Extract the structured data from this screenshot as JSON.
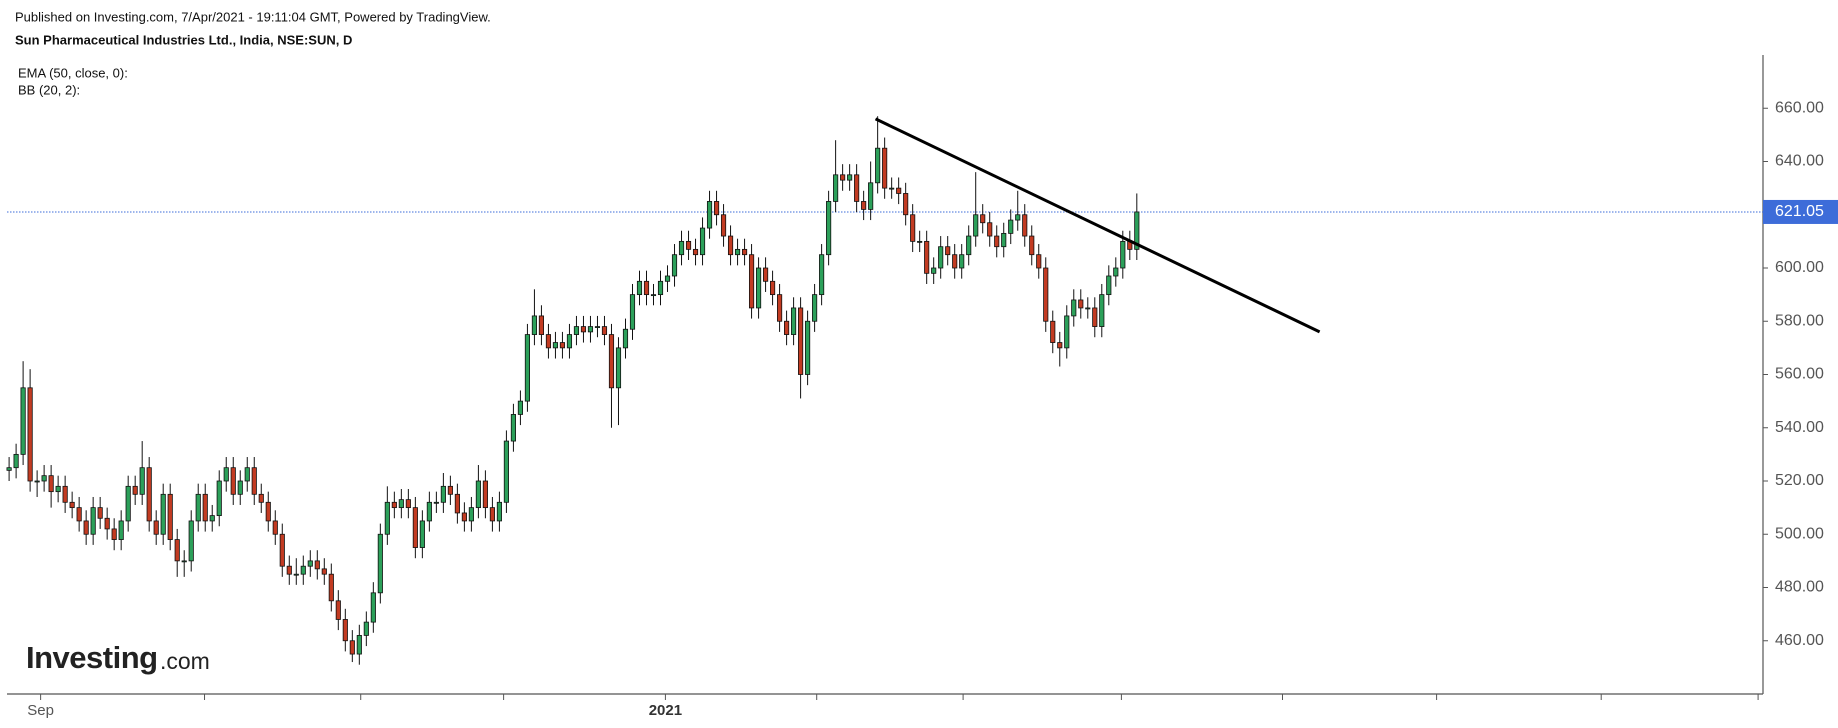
{
  "header": {
    "published": "Published on Investing.com, 7/Apr/2021 - 19:11:04 GMT, Powered by TradingView.",
    "symbol": "Sun Pharmaceutical Industries Ltd., India, NSE:SUN, D"
  },
  "indicators": [
    "EMA (50, close, 0):",
    "BB (20, 2):"
  ],
  "logo": {
    "name": "Investing",
    "suffix": ".com"
  },
  "chart_data": {
    "type": "candlestick",
    "up_color": "#2ca05a",
    "down_color": "#c23b22",
    "open": [
      524,
      525,
      530,
      555,
      520,
      520,
      522,
      516,
      518,
      512,
      510,
      505,
      500,
      510,
      506,
      502,
      498,
      505,
      518,
      515,
      525,
      505,
      500,
      515,
      498,
      490,
      490,
      505,
      515,
      505,
      507,
      520,
      525,
      515,
      520,
      525,
      515,
      512,
      505,
      500,
      488,
      485,
      485,
      488,
      490,
      487,
      485,
      475,
      468,
      460,
      455,
      462,
      467,
      478,
      500,
      512,
      510,
      513,
      510,
      495,
      505,
      512,
      512,
      518,
      515,
      508,
      505,
      510,
      520,
      510,
      505,
      512,
      535,
      545,
      550,
      575,
      582,
      575,
      570,
      572,
      570,
      575,
      578,
      576,
      578,
      578,
      575,
      555,
      570,
      577,
      590,
      595,
      590,
      590,
      595,
      597,
      605,
      610,
      607,
      605,
      615,
      625,
      620,
      612,
      605,
      607,
      605,
      585,
      600,
      595,
      590,
      580,
      575,
      585,
      560,
      580,
      590,
      605,
      625,
      635,
      633,
      635,
      625,
      622,
      632,
      645,
      630,
      630,
      628,
      620,
      610,
      610,
      598,
      600,
      608,
      605,
      600,
      605,
      612,
      620,
      617,
      612,
      608,
      613,
      618,
      620,
      612,
      605,
      600,
      580,
      572,
      570,
      582,
      588,
      585,
      585,
      578,
      590,
      597,
      600,
      610,
      607
    ],
    "high": [
      529,
      534,
      565,
      562,
      524,
      526,
      526,
      522,
      522,
      516,
      514,
      509,
      514,
      514,
      510,
      506,
      509,
      522,
      522,
      535,
      529,
      509,
      519,
      519,
      502,
      494,
      509,
      519,
      519,
      511,
      524,
      529,
      529,
      524,
      529,
      529,
      519,
      516,
      509,
      504,
      492,
      491,
      492,
      494,
      494,
      491,
      489,
      479,
      472,
      464,
      466,
      471,
      482,
      504,
      518,
      516,
      517,
      517,
      514,
      509,
      516,
      516,
      523,
      522,
      519,
      512,
      514,
      526,
      524,
      514,
      516,
      539,
      549,
      554,
      579,
      592,
      586,
      579,
      576,
      576,
      579,
      582,
      582,
      582,
      582,
      582,
      579,
      574,
      581,
      594,
      599,
      599,
      594,
      599,
      601,
      609,
      614,
      614,
      611,
      619,
      629,
      629,
      624,
      616,
      611,
      611,
      609,
      604,
      604,
      599,
      594,
      584,
      589,
      589,
      584,
      594,
      609,
      629,
      648,
      639,
      639,
      639,
      629,
      640,
      657,
      649,
      634,
      634,
      632,
      624,
      614,
      614,
      604,
      612,
      612,
      609,
      609,
      616,
      636,
      624,
      621,
      616,
      617,
      622,
      629,
      624,
      616,
      609,
      604,
      584,
      576,
      586,
      592,
      592,
      589,
      589,
      594,
      601,
      604,
      614,
      614,
      628
    ],
    "low": [
      520,
      521,
      526,
      516,
      514,
      516,
      510,
      512,
      508,
      506,
      501,
      496,
      496,
      502,
      498,
      494,
      494,
      501,
      511,
      511,
      501,
      496,
      496,
      494,
      484,
      484,
      486,
      501,
      501,
      501,
      503,
      516,
      511,
      511,
      516,
      511,
      508,
      501,
      496,
      484,
      481,
      481,
      481,
      484,
      483,
      481,
      471,
      464,
      456,
      452,
      451,
      458,
      463,
      474,
      496,
      506,
      506,
      506,
      491,
      491,
      501,
      508,
      508,
      511,
      504,
      501,
      501,
      506,
      506,
      501,
      501,
      508,
      531,
      541,
      546,
      571,
      571,
      566,
      566,
      566,
      566,
      571,
      572,
      572,
      574,
      571,
      540,
      541,
      566,
      573,
      586,
      586,
      586,
      586,
      591,
      593,
      601,
      603,
      601,
      601,
      611,
      616,
      608,
      601,
      601,
      601,
      581,
      581,
      591,
      586,
      576,
      571,
      571,
      551,
      556,
      576,
      586,
      601,
      621,
      629,
      629,
      621,
      618,
      618,
      628,
      626,
      626,
      624,
      616,
      606,
      606,
      594,
      594,
      596,
      601,
      596,
      596,
      601,
      608,
      613,
      608,
      604,
      604,
      609,
      614,
      608,
      601,
      596,
      576,
      568,
      563,
      566,
      578,
      581,
      581,
      574,
      574,
      586,
      593,
      596,
      603,
      603
    ],
    "close": [
      525,
      530,
      555,
      520,
      520,
      522,
      516,
      518,
      512,
      510,
      505,
      500,
      510,
      506,
      502,
      498,
      505,
      518,
      515,
      525,
      505,
      500,
      515,
      498,
      490,
      490,
      505,
      515,
      505,
      507,
      520,
      525,
      515,
      520,
      525,
      515,
      512,
      505,
      500,
      488,
      485,
      485,
      488,
      490,
      487,
      485,
      475,
      468,
      460,
      455,
      462,
      467,
      478,
      500,
      512,
      510,
      513,
      510,
      495,
      505,
      512,
      512,
      518,
      515,
      508,
      505,
      510,
      520,
      510,
      505,
      512,
      535,
      545,
      550,
      575,
      582,
      575,
      570,
      572,
      570,
      575,
      578,
      576,
      578,
      578,
      575,
      555,
      570,
      577,
      590,
      595,
      590,
      590,
      595,
      597,
      605,
      610,
      607,
      605,
      615,
      625,
      620,
      612,
      605,
      607,
      605,
      585,
      600,
      595,
      590,
      580,
      575,
      585,
      560,
      580,
      590,
      605,
      625,
      635,
      633,
      635,
      625,
      622,
      632,
      645,
      630,
      630,
      628,
      620,
      610,
      610,
      598,
      600,
      608,
      605,
      600,
      605,
      612,
      620,
      617,
      612,
      608,
      613,
      618,
      620,
      612,
      605,
      600,
      580,
      572,
      570,
      582,
      588,
      585,
      585,
      578,
      590,
      597,
      600,
      610,
      607,
      621.05
    ],
    "xlim": [
      -0.3,
      250.4
    ],
    "xticks": [
      {
        "value": 4.5,
        "label": "Sep"
      },
      {
        "value": 27.9,
        "label": null
      },
      {
        "value": 50.2,
        "label": null
      },
      {
        "value": 70.6,
        "label": null
      },
      {
        "value": 93.7,
        "label": "2021",
        "bold": true
      },
      {
        "value": 115.3,
        "label": null
      },
      {
        "value": 136.2,
        "label": null
      },
      {
        "value": 158.8,
        "label": null
      },
      {
        "value": 181.8,
        "label": null
      },
      {
        "value": 203.8,
        "label": null
      },
      {
        "value": 227.3,
        "label": null
      },
      {
        "value": 249.7,
        "label": null
      }
    ],
    "ylim": [
      440,
      680
    ],
    "yticks": [
      {
        "value": 460,
        "label": "460.00"
      },
      {
        "value": 480,
        "label": "480.00"
      },
      {
        "value": 500,
        "label": "500.00"
      },
      {
        "value": 520,
        "label": "520.00"
      },
      {
        "value": 540,
        "label": "540.00"
      },
      {
        "value": 560,
        "label": "560.00"
      },
      {
        "value": 580,
        "label": "580.00"
      },
      {
        "value": 600,
        "label": "600.00"
      },
      {
        "value": 620,
        "label": "620.00"
      },
      {
        "value": 640,
        "label": "640.00"
      },
      {
        "value": 660,
        "label": "660.00"
      }
    ],
    "last_price": 621.05,
    "last_price_color": "#3d6cd9",
    "trendline": {
      "x": [
        123.7,
        187.1
      ],
      "y": [
        656,
        576
      ],
      "color": "#000000"
    }
  }
}
